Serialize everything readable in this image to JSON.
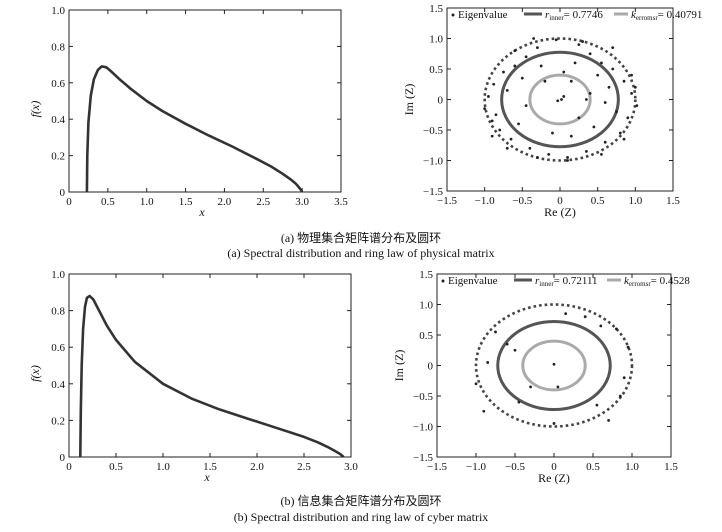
{
  "captions": {
    "a_cn": "(a) 物理集合矩阵谱分布及圆环",
    "a_en": "(a) Spectral distribution and ring law of physical matrix",
    "b_cn": "(b) 信息集合矩阵谱分布及圆环",
    "b_en": "(b) Spectral distribution and ring law of cyber matrix"
  },
  "chart_data": [
    {
      "type": "line",
      "panel": "a-left",
      "xlabel": "x",
      "ylabel": "f(x)",
      "xlim": [
        0,
        3.5
      ],
      "ylim": [
        0,
        1.0
      ],
      "xticks": [
        0,
        0.5,
        1.0,
        1.5,
        2.0,
        2.5,
        3.0,
        3.5
      ],
      "yticks": [
        0,
        0.2,
        0.4,
        0.6,
        0.8,
        1.0
      ],
      "xtick_labels": [
        "0",
        "0.5",
        "1.0",
        "1.5",
        "2.0",
        "2.5",
        "3.0",
        "3.5"
      ],
      "ytick_labels": [
        "0",
        "0.2",
        "0.4",
        "0.6",
        "0.8",
        "1.0"
      ],
      "grid": false,
      "series": [
        {
          "color": "#333333",
          "x": [
            0.23,
            0.235,
            0.25,
            0.28,
            0.32,
            0.37,
            0.42,
            0.48,
            0.55,
            0.65,
            0.8,
            1.0,
            1.2,
            1.5,
            1.8,
            2.1,
            2.4,
            2.6,
            2.75,
            2.85,
            2.92,
            2.96,
            2.99,
            3.0
          ],
          "y": [
            0.0,
            0.2,
            0.38,
            0.53,
            0.62,
            0.67,
            0.69,
            0.685,
            0.66,
            0.62,
            0.565,
            0.5,
            0.445,
            0.375,
            0.31,
            0.25,
            0.185,
            0.14,
            0.1,
            0.07,
            0.045,
            0.025,
            0.008,
            0.0
          ]
        }
      ]
    },
    {
      "type": "scatter",
      "panel": "a-right",
      "xlabel": "Re (Z)",
      "ylabel": "Im (Z)",
      "xlim": [
        -1.5,
        1.5
      ],
      "ylim": [
        -1.5,
        1.5
      ],
      "xticks": [
        -1.5,
        -1.0,
        -0.5,
        0,
        0.5,
        1.0,
        1.5
      ],
      "yticks": [
        -1.5,
        -1.0,
        -0.5,
        0,
        0.5,
        1.0,
        1.5
      ],
      "xtick_labels": [
        "−1.5",
        "−1.0",
        "−0.5",
        "0",
        "0.5",
        "1.0",
        "1.5"
      ],
      "ytick_labels": [
        "−1.5",
        "−1.0",
        "−0.5",
        "0",
        "0.5",
        "1.0",
        "1.5"
      ],
      "grid": false,
      "legend": {
        "placement": "top",
        "eigen_label": "Eigenvalue",
        "inner_sym": "r",
        "inner_sub": "inner",
        "inner_value": "= 0.7746",
        "err_sym": "k",
        "err_sub": "erromsr",
        "err_value": "= 0.40791"
      },
      "rings": {
        "outer": 1.0,
        "inner": 0.7746,
        "small": 0.4
      },
      "ring_colors": {
        "outer": "#444444",
        "inner": "#555555",
        "small": "#aaaaaa"
      },
      "points": {
        "x": [
          0.02,
          0.05,
          -0.03,
          0.25,
          -0.3,
          0.4,
          -0.45,
          0.55,
          -0.6,
          0.7,
          -0.75,
          0.85,
          -0.88,
          0.95,
          -0.95,
          1.02,
          -1.0,
          0.1,
          -0.15,
          0.35,
          -0.4,
          0.6,
          -0.65,
          0.8,
          -0.8,
          0.9,
          -0.9,
          0.2,
          -0.25,
          0.5,
          -0.5,
          0.65,
          -0.7,
          0.15,
          -0.1,
          0.45,
          -0.55,
          0.75,
          -0.85,
          0.3,
          -0.35,
          0.95,
          -0.6,
          0.55,
          0.1,
          -0.05,
          0.85,
          -0.7,
          0.4,
          -0.45,
          1.0,
          0.7,
          -0.2,
          0.25,
          -0.9,
          0.6,
          0.05,
          -0.3,
          0.35,
          0.15
        ],
        "y": [
          0.0,
          0.05,
          -0.02,
          0.9,
          0.85,
          0.75,
          0.7,
          0.6,
          0.55,
          0.5,
          0.45,
          0.3,
          0.25,
          0.1,
          0.05,
          -0.1,
          -0.15,
          -0.95,
          -0.9,
          -0.85,
          -0.8,
          -0.7,
          -0.65,
          -0.55,
          -0.5,
          -0.3,
          -0.35,
          0.6,
          0.55,
          0.4,
          0.35,
          0.2,
          0.15,
          -0.6,
          -0.55,
          -0.45,
          -0.4,
          -0.2,
          -0.25,
          0.95,
          1.0,
          0.4,
          0.8,
          -0.9,
          -1.0,
          0.98,
          -0.65,
          -0.8,
          0.1,
          -0.1,
          0.2,
          0.85,
          0.3,
          -0.3,
          -0.6,
          -0.05,
          0.45,
          -0.95,
          0.0,
          0.3
        ]
      }
    },
    {
      "type": "line",
      "panel": "b-left",
      "xlabel": "x",
      "ylabel": "f(x)",
      "xlim": [
        0,
        3.0
      ],
      "ylim": [
        0,
        1.0
      ],
      "xticks": [
        0,
        0.5,
        1.0,
        1.5,
        2.0,
        2.5,
        3.0
      ],
      "yticks": [
        0,
        0.2,
        0.4,
        0.6,
        0.8,
        1.0
      ],
      "xtick_labels": [
        "0",
        "0.5",
        "1.0",
        "1.5",
        "2.0",
        "2.5",
        "3.0"
      ],
      "ytick_labels": [
        "0",
        "0.2",
        "0.4",
        "0.6",
        "0.8",
        "1.0"
      ],
      "grid": false,
      "series": [
        {
          "color": "#333333",
          "x": [
            0.12,
            0.125,
            0.135,
            0.15,
            0.17,
            0.19,
            0.22,
            0.26,
            0.32,
            0.4,
            0.5,
            0.7,
            1.0,
            1.3,
            1.6,
            1.9,
            2.2,
            2.5,
            2.65,
            2.75,
            2.83,
            2.88,
            2.91,
            2.92
          ],
          "y": [
            0.0,
            0.25,
            0.5,
            0.7,
            0.82,
            0.87,
            0.88,
            0.86,
            0.8,
            0.72,
            0.64,
            0.52,
            0.4,
            0.32,
            0.26,
            0.21,
            0.16,
            0.11,
            0.08,
            0.055,
            0.033,
            0.018,
            0.006,
            0.0
          ]
        }
      ]
    },
    {
      "type": "scatter",
      "panel": "b-right",
      "xlabel": "Re (Z)",
      "ylabel": "Im (Z)",
      "xlim": [
        -1.5,
        1.5
      ],
      "ylim": [
        -1.5,
        1.5
      ],
      "xticks": [
        -1.5,
        -1.0,
        -0.5,
        0,
        0.5,
        1.0,
        1.5
      ],
      "yticks": [
        -1.5,
        -1.0,
        -0.5,
        0,
        0.5,
        1.0,
        1.5
      ],
      "xtick_labels": [
        "−1.5",
        "−1.0",
        "−0.5",
        "0",
        "0.5",
        "1.0",
        "1.5"
      ],
      "ytick_labels": [
        "−1.5",
        "−1.0",
        "−0.5",
        "0",
        "0.5",
        "1.0",
        "1.5"
      ],
      "grid": false,
      "legend": {
        "placement": "top",
        "eigen_label": "Eigenvalue",
        "inner_sym": "r",
        "inner_sub": "inner",
        "inner_value": "= 0.72111",
        "err_sym": "k",
        "err_sub": "erromsr",
        "err_value": "= 0.4528"
      },
      "rings": {
        "outer": 1.0,
        "inner": 0.72111,
        "small": 0.4
      },
      "ring_colors": {
        "outer": "#444444",
        "inner": "#555555",
        "small": "#aaaaaa"
      },
      "points": {
        "x": [
          0.0,
          0.05,
          -0.85,
          0.95,
          -0.75,
          0.55,
          -0.45,
          0.8,
          -1.0,
          0.85,
          0.15,
          -0.3,
          0.7,
          -0.6,
          0.4,
          -0.9,
          0.9,
          0.0,
          0.6,
          -0.5
        ],
        "y": [
          0.02,
          -0.35,
          0.05,
          0.3,
          0.55,
          -0.65,
          -0.6,
          0.6,
          -0.3,
          -0.5,
          0.85,
          -0.35,
          -0.9,
          0.35,
          0.8,
          -0.75,
          -0.2,
          -0.95,
          0.65,
          0.25
        ]
      }
    }
  ]
}
